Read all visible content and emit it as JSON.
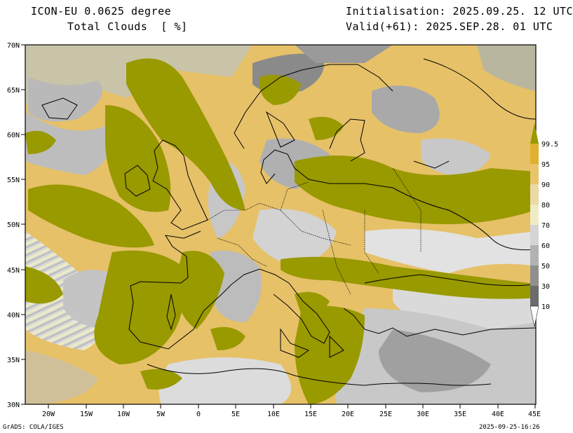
{
  "header": {
    "model": "ICON-EU 0.0625 degree",
    "variable": "Total Clouds  [ %]",
    "init": "Initialisation: 2025.09.25. 12 UTC",
    "valid": "Valid(+61): 2025.SEP.28. 01 UTC"
  },
  "axes": {
    "lat_labels": [
      "70N",
      "65N",
      "60N",
      "55N",
      "50N",
      "45N",
      "40N",
      "35N",
      "30N"
    ],
    "lon_labels": [
      "20W",
      "15W",
      "10W",
      "5W",
      "0",
      "5E",
      "10E",
      "15E",
      "20E",
      "25E",
      "30E",
      "35E",
      "40E",
      "45E"
    ]
  },
  "colorbar": {
    "labels": [
      "99.5",
      "95",
      "90",
      "80",
      "70",
      "60",
      "50",
      "30",
      "10"
    ],
    "colors": [
      "#999900",
      "#e0b030",
      "#eac46a",
      "#ead9a6",
      "#efecc4",
      "#d4d4d4",
      "#b2b2b2",
      "#8f8f8f",
      "#6c6c6c"
    ]
  },
  "footer": {
    "left": "GrADS: COLA/IGES",
    "right": "2025-09-25-16:26"
  }
}
